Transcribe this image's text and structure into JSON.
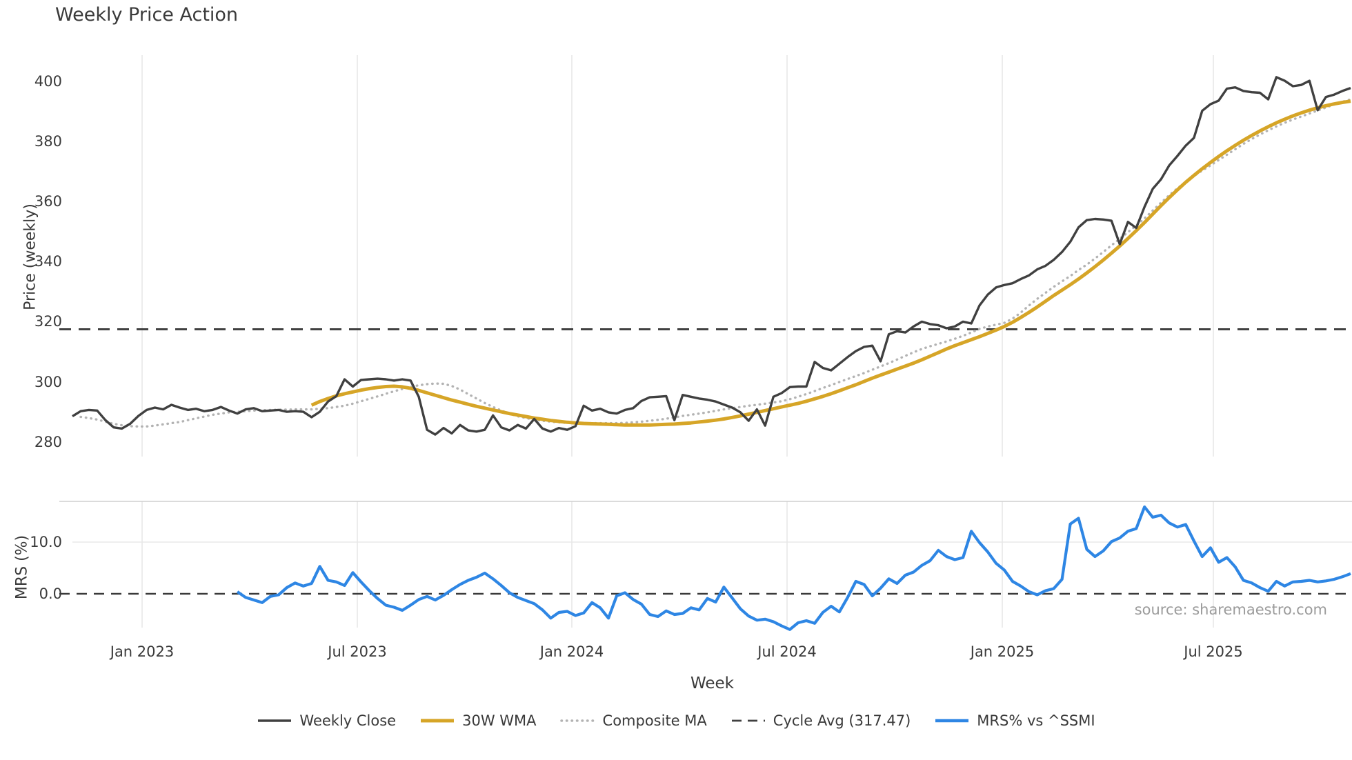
{
  "title": "Weekly Price Action",
  "xlabel": "Week",
  "source": "source: sharemaestro.com",
  "price_panel": {
    "ylabel": "Price (weekly)",
    "yticks": [
      "400",
      "380",
      "360",
      "340",
      "320",
      "300",
      "280"
    ]
  },
  "mrs_panel": {
    "ylabel": "MRS (%)",
    "yticks": [
      "10.0",
      "0.0"
    ]
  },
  "xticks": [
    "Jan 2023",
    "Jul 2023",
    "Jan 2024",
    "Jul 2024",
    "Jan 2025",
    "Jul 2025"
  ],
  "legend": [
    {
      "label": "Weekly Close",
      "style": "solid",
      "color": "#404040",
      "width": 3.5
    },
    {
      "label": "30W WMA",
      "style": "solid",
      "color": "#d6a527",
      "width": 5
    },
    {
      "label": "Composite MA",
      "style": "dotted",
      "color": "#b3b3b3",
      "width": 3.5
    },
    {
      "label": "Cycle Avg (317.47)",
      "style": "dashed",
      "color": "#404040",
      "width": 2.8
    },
    {
      "label": "MRS% vs ^SSMI",
      "style": "solid",
      "color": "#2e86e4",
      "width": 4.5
    }
  ],
  "colors": {
    "close": "#404040",
    "wma": "#d6a527",
    "composite": "#b3b3b3",
    "cycle": "#3a3a3a",
    "mrs": "#2e86e4",
    "grid": "#e8e8e8",
    "spine": "#cfcfcf",
    "text": "#3a3a3a",
    "source_text": "#9b9b9b"
  },
  "chart_data": {
    "type": "line",
    "x_unit": "weekly, Nov 2022 - Oct 2025",
    "xticks": [
      "Jan 2023",
      "Jul 2023",
      "Jan 2024",
      "Jul 2024",
      "Jan 2025",
      "Jul 2025"
    ],
    "xtick_week_index": [
      8.4,
      34.5,
      60.6,
      86.7,
      112.8,
      138.4
    ],
    "grid": "vertical-only",
    "legend_position": "bottom-center",
    "panels": [
      {
        "name": "price",
        "ylabel": "Price (weekly)",
        "ylim": [
          274,
          409
        ],
        "yticks": [
          400,
          380,
          360,
          340,
          320,
          300,
          280
        ],
        "series": [
          {
            "name": "Weekly Close",
            "style": "solid",
            "color": "#404040",
            "start_week": 0,
            "values": [
              288.5,
              290.2,
              290.6,
              290.4,
              287.2,
              284.8,
              284.4,
              286.0,
              288.6,
              290.6,
              291.4,
              290.8,
              292.3,
              291.4,
              290.6,
              291.0,
              290.2,
              290.6,
              291.6,
              290.4,
              289.4,
              290.8,
              291.2,
              290.2,
              290.4,
              290.6,
              290.0,
              290.2,
              290.0,
              288.2,
              290.0,
              293.4,
              295.2,
              300.8,
              298.4,
              300.6,
              300.8,
              301.0,
              300.8,
              300.4,
              300.8,
              300.4,
              295.0,
              284.0,
              282.4,
              284.6,
              282.8,
              285.6,
              283.8,
              283.4,
              284.0,
              288.8,
              284.8,
              283.8,
              285.6,
              284.4,
              287.6,
              284.4,
              283.4,
              284.6,
              284.0,
              285.2,
              292.0,
              290.4,
              291.0,
              289.8,
              289.4,
              290.6,
              291.2,
              293.6,
              294.8,
              295.0,
              295.2,
              287.2,
              295.6,
              295.0,
              294.4,
              294.0,
              293.4,
              292.4,
              291.4,
              289.8,
              287.0,
              290.8,
              285.4,
              295.0,
              296.2,
              298.2,
              298.4,
              298.4,
              306.6,
              304.6,
              303.8,
              306.0,
              308.2,
              310.2,
              311.6,
              312.0,
              306.8,
              315.8,
              316.8,
              316.4,
              318.4,
              320.0,
              319.2,
              318.8,
              317.8,
              318.4,
              320.0,
              319.4,
              325.4,
              329.0,
              331.4,
              332.2,
              332.8,
              334.2,
              335.4,
              337.4,
              338.6,
              340.6,
              343.2,
              346.6,
              351.4,
              353.8,
              354.2,
              354.0,
              353.6,
              345.8,
              353.2,
              351.2,
              358.2,
              364.2,
              367.4,
              372.0,
              375.2,
              378.6,
              381.2,
              390.2,
              392.4,
              393.6,
              397.6,
              398.0,
              396.8,
              396.4,
              396.2,
              394.0,
              401.4,
              400.2,
              398.4,
              398.8,
              400.2,
              390.4,
              394.8,
              395.6,
              396.8,
              397.8
            ]
          },
          {
            "name": "30W WMA",
            "style": "solid",
            "color": "#d6a527",
            "start_week": 29,
            "values": [
              292.2,
              293.4,
              294.4,
              295.3,
              296.0,
              296.6,
              297.2,
              297.7,
              298.1,
              298.4,
              298.5,
              298.3,
              297.8,
              297.1,
              296.3,
              295.5,
              294.7,
              293.9,
              293.2,
              292.5,
              291.8,
              291.2,
              290.6,
              290.0,
              289.4,
              288.9,
              288.4,
              287.9,
              287.5,
              287.1,
              286.8,
              286.5,
              286.3,
              286.1,
              286.0,
              285.9,
              285.8,
              285.7,
              285.6,
              285.6,
              285.6,
              285.6,
              285.7,
              285.8,
              285.9,
              286.1,
              286.3,
              286.6,
              286.9,
              287.2,
              287.6,
              288.1,
              288.6,
              289.2,
              289.8,
              290.4,
              291.0,
              291.6,
              292.2,
              292.8,
              293.5,
              294.3,
              295.1,
              296.0,
              297.0,
              298.0,
              299.0,
              300.1,
              301.2,
              302.2,
              303.2,
              304.2,
              305.2,
              306.2,
              307.3,
              308.5,
              309.7,
              310.9,
              312.0,
              313.0,
              314.0,
              315.0,
              316.1,
              317.2,
              318.4,
              319.8,
              321.4,
              323.1,
              324.9,
              326.8,
              328.7,
              330.5,
              332.3,
              334.2,
              336.2,
              338.3,
              340.5,
              342.8,
              345.2,
              347.7,
              350.3,
              353.0,
              355.8,
              358.6,
              361.3,
              363.9,
              366.4,
              368.7,
              370.9,
              373.0,
              375.0,
              376.9,
              378.7,
              380.4,
              382.0,
              383.5,
              384.9,
              386.2,
              387.4,
              388.5,
              389.5,
              390.4,
              391.2,
              391.9,
              392.5,
              393.0,
              393.4
            ]
          },
          {
            "name": "Composite MA",
            "style": "dotted",
            "color": "#b3b3b3",
            "start_week": 1,
            "values": [
              288.3,
              287.9,
              287.4,
              286.7,
              286.0,
              285.5,
              285.2,
              285.1,
              285.1,
              285.4,
              285.8,
              286.2,
              286.6,
              287.2,
              287.8,
              288.4,
              289.0,
              289.4,
              289.8,
              290.0,
              290.2,
              290.4,
              290.5,
              290.6,
              290.7,
              290.7,
              290.8,
              290.8,
              290.8,
              291.0,
              291.2,
              291.6,
              292.0,
              292.7,
              293.5,
              294.3,
              295.1,
              296.0,
              296.8,
              297.6,
              298.3,
              298.8,
              299.2,
              299.4,
              299.3,
              298.6,
              297.4,
              295.9,
              294.4,
              292.9,
              291.6,
              290.4,
              289.4,
              288.5,
              287.9,
              287.4,
              287.0,
              286.7,
              286.5,
              286.3,
              286.2,
              286.2,
              286.2,
              286.2,
              286.2,
              286.2,
              286.3,
              286.5,
              286.7,
              287.0,
              287.3,
              287.7,
              288.1,
              288.6,
              289.0,
              289.4,
              289.8,
              290.3,
              290.8,
              291.2,
              291.6,
              292.0,
              292.3,
              292.7,
              293.1,
              293.5,
              294.2,
              295.0,
              295.9,
              296.9,
              297.9,
              298.9,
              299.9,
              300.9,
              301.9,
              302.9,
              304.0,
              305.1,
              306.2,
              307.4,
              308.6,
              309.8,
              310.9,
              311.8,
              312.6,
              313.4,
              314.3,
              315.3,
              316.4,
              317.6,
              318.4,
              319.0,
              319.6,
              321.0,
              323.0,
              325.4,
              327.6,
              329.6,
              331.6,
              333.4,
              335.2,
              337.2,
              339.0,
              341.0,
              343.2,
              345.4,
              347.6,
              349.8,
              352.0,
              354.4,
              357.0,
              359.6,
              362.1,
              364.4,
              366.5,
              368.5,
              370.3,
              372.0,
              373.8,
              375.6,
              377.4,
              379.2,
              380.8,
              382.3,
              383.7,
              385.0,
              386.2,
              387.3,
              388.3,
              389.3,
              390.3,
              391.3,
              392.3,
              393.2,
              394.0
            ]
          },
          {
            "name": "Cycle Avg",
            "style": "dashed",
            "color": "#3a3a3a",
            "value": 317.47
          }
        ]
      },
      {
        "name": "mrs",
        "ylabel": "MRS (%)",
        "ylim": [
          -8.2,
          17.9
        ],
        "yticks": [
          10.0,
          0.0
        ],
        "series": [
          {
            "name": "MRS% vs ^SSMI",
            "style": "solid",
            "color": "#2e86e4",
            "start_week": 20,
            "values": [
              0.4,
              -0.7,
              -1.2,
              -1.7,
              -0.5,
              -0.2,
              1.2,
              2.1,
              1.5,
              2.0,
              5.3,
              2.6,
              2.3,
              1.6,
              4.1,
              2.3,
              0.6,
              -0.9,
              -2.2,
              -2.6,
              -3.2,
              -2.2,
              -1.1,
              -0.5,
              -1.2,
              -0.3,
              0.8,
              1.8,
              2.6,
              3.2,
              4.0,
              2.9,
              1.6,
              0.2,
              -0.7,
              -1.3,
              -1.9,
              -3.1,
              -4.7,
              -3.6,
              -3.4,
              -4.2,
              -3.7,
              -1.7,
              -2.7,
              -4.7,
              -0.4,
              0.2,
              -1.1,
              -2.0,
              -4.0,
              -4.4,
              -3.3,
              -4.0,
              -3.8,
              -2.7,
              -3.1,
              -0.9,
              -1.6,
              1.3,
              -0.8,
              -2.9,
              -4.3,
              -5.1,
              -4.9,
              -5.4,
              -6.2,
              -6.9,
              -5.6,
              -5.2,
              -5.7,
              -3.6,
              -2.4,
              -3.5,
              -0.7,
              2.4,
              1.8,
              -0.4,
              1.1,
              2.9,
              2.0,
              3.6,
              4.2,
              5.5,
              6.4,
              8.4,
              7.2,
              6.6,
              7.0,
              12.1,
              9.9,
              8.1,
              5.9,
              4.6,
              2.4,
              1.5,
              0.4,
              -0.2,
              0.6,
              1.0,
              2.8,
              13.5,
              14.6,
              8.6,
              7.2,
              8.3,
              10.1,
              10.8,
              12.1,
              12.6,
              16.8,
              14.8,
              15.2,
              13.7,
              12.9,
              13.4,
              10.2,
              7.2,
              8.9,
              6.1,
              7.0,
              5.2,
              2.6,
              2.1,
              1.2,
              0.5,
              2.4,
              1.5,
              2.3,
              2.4,
              2.6,
              2.3,
              2.5,
              2.8,
              3.3,
              3.9
            ]
          },
          {
            "name": "Zero line",
            "style": "dashed",
            "color": "#3a3a3a",
            "value": 0
          }
        ]
      }
    ]
  }
}
